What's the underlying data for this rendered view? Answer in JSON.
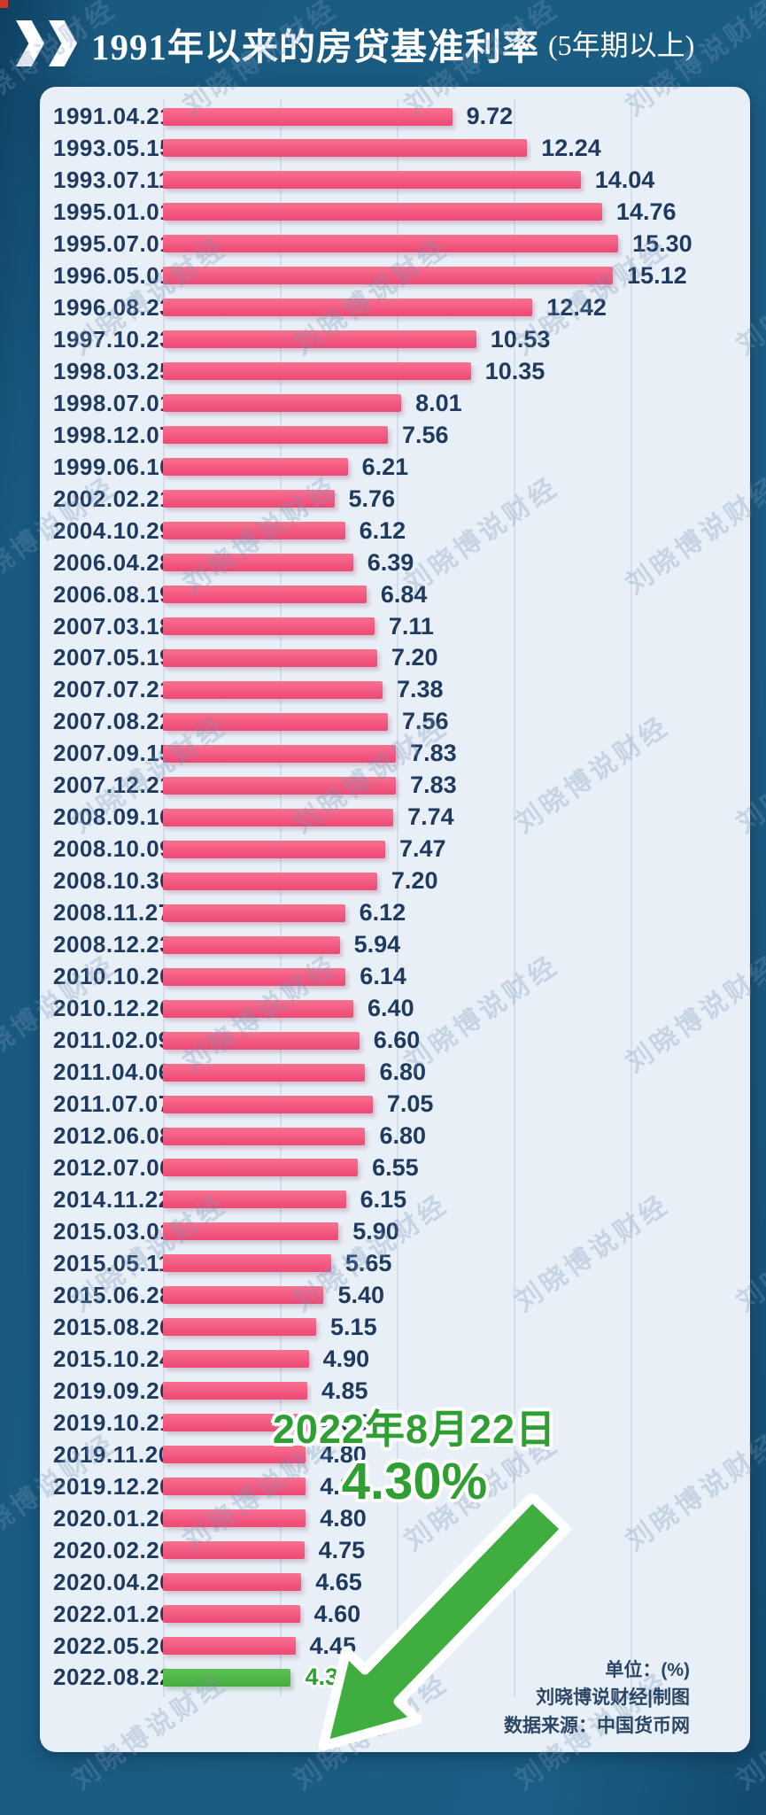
{
  "header": {
    "title": "1991年以来的房贷基准利率",
    "subtitle": "(5年期以上)"
  },
  "chart_data": {
    "type": "bar",
    "orientation": "horizontal",
    "title": "1991年以来的房贷基准利率 (5年期以上)",
    "unit": "%",
    "xlim": [
      0,
      16
    ],
    "grid": "vertical-lines",
    "bar_color": "#f1537d",
    "highlight_color": "#46ad3e",
    "highlight_index": 49,
    "categories": [
      "1991.04.21",
      "1993.05.15",
      "1993.07.11",
      "1995.01.01",
      "1995.07.01",
      "1996.05.01",
      "1996.08.23",
      "1997.10.23",
      "1998.03.25",
      "1998.07.01",
      "1998.12.07",
      "1999.06.10",
      "2002.02.21",
      "2004.10.29",
      "2006.04.28",
      "2006.08.19",
      "2007.03.18",
      "2007.05.19",
      "2007.07.21",
      "2007.08.22",
      "2007.09.15",
      "2007.12.21",
      "2008.09.16",
      "2008.10.09",
      "2008.10.30",
      "2008.11.27",
      "2008.12.23",
      "2010.10.20",
      "2010.12.26",
      "2011.02.09",
      "2011.04.06",
      "2011.07.07",
      "2012.06.08",
      "2012.07.06",
      "2014.11.22",
      "2015.03.01",
      "2015.05.11",
      "2015.06.28",
      "2015.08.26",
      "2015.10.24",
      "2019.09.20",
      "2019.10.21",
      "2019.11.20",
      "2019.12.20",
      "2020.01.20",
      "2020.02.20",
      "2020.04.20",
      "2022.01.20",
      "2022.05.20",
      "2022.08.22"
    ],
    "values": [
      9.72,
      12.24,
      14.04,
      14.76,
      15.3,
      15.12,
      12.42,
      10.53,
      10.35,
      8.01,
      7.56,
      6.21,
      5.76,
      6.12,
      6.39,
      6.84,
      7.11,
      7.2,
      7.38,
      7.56,
      7.83,
      7.83,
      7.74,
      7.47,
      7.2,
      6.12,
      5.94,
      6.14,
      6.4,
      6.6,
      6.8,
      7.05,
      6.8,
      6.55,
      6.15,
      5.9,
      5.65,
      5.4,
      5.15,
      4.9,
      4.85,
      4.85,
      4.8,
      4.8,
      4.8,
      4.75,
      4.65,
      4.6,
      4.45,
      4.3
    ],
    "value_labels": [
      "9.72",
      "12.24",
      "14.04",
      "14.76",
      "15.30",
      "15.12",
      "12.42",
      "10.53",
      "10.35",
      "8.01",
      "7.56",
      "6.21",
      "5.76",
      "6.12",
      "6.39",
      "6.84",
      "7.11",
      "7.20",
      "7.38",
      "7.56",
      "7.83",
      "7.83",
      "7.74",
      "7.47",
      "7.20",
      "6.12",
      "5.94",
      "6.14",
      "6.40",
      "6.60",
      "6.80",
      "7.05",
      "6.80",
      "6.55",
      "6.15",
      "5.90",
      "5.65",
      "5.40",
      "5.15",
      "4.90",
      "4.85",
      "4.85",
      "4.80",
      "4.80",
      "4.80",
      "4.75",
      "4.65",
      "4.60",
      "4.45",
      "4.30"
    ]
  },
  "annotation": {
    "line1": "2022年8月22日",
    "line2": "4.30%",
    "color": "#2f9e33",
    "arrow": "down-left"
  },
  "footer": {
    "unit_label": "单位：(%)",
    "credit": "刘晓博说财经|制图",
    "source": "数据来源：中国货币网"
  },
  "watermark": {
    "text": "刘晓博说财经"
  }
}
